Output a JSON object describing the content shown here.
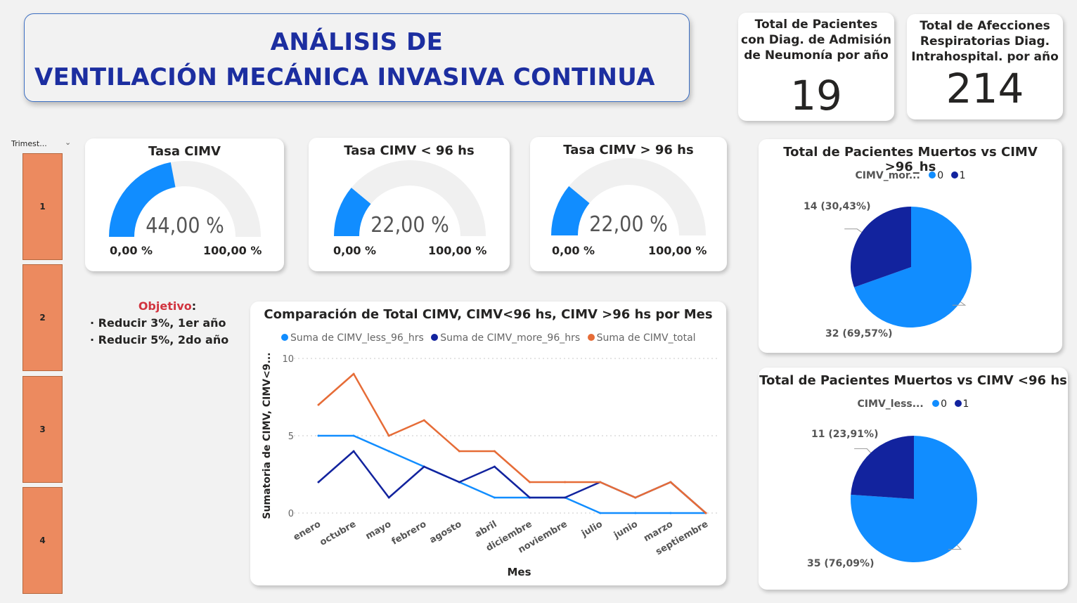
{
  "header": {
    "title_line1": "ANÁLISIS DE",
    "title_line2": "VENTILACIÓN MECÁNICA INVASIVA CONTINUA"
  },
  "kpis": [
    {
      "label": "Total de Pacientes con Diag. de Admisión de Neumonía por año",
      "value": "19"
    },
    {
      "label": "Total de Afecciones Respiratorias Diag. Intrahospital. por año",
      "value": "214"
    }
  ],
  "slicer": {
    "label": "Trimest...",
    "chevron_icon": "chevron-down-icon",
    "options": [
      "1",
      "2",
      "3",
      "4"
    ]
  },
  "gauges": [
    {
      "title": "Tasa CIMV",
      "value_label": "44,00 %",
      "value": 44,
      "min_label": "0,00 %",
      "max_label": "100,00 %"
    },
    {
      "title": "Tasa CIMV < 96 hs",
      "value_label": "22,00 %",
      "value": 22,
      "min_label": "0,00 %",
      "max_label": "100,00 %"
    },
    {
      "title": "Tasa CIMV > 96 hs",
      "value_label": "22,00 %",
      "value": 22,
      "min_label": "0,00 %",
      "max_label": "100,00 %"
    }
  ],
  "objective": {
    "title": "Objetivo",
    "items": [
      "· Reducir 3%, 1er año",
      "· Reducir 5%, 2do año"
    ]
  },
  "colors": {
    "accent_blue": "#118dff",
    "dark_blue": "#12239e",
    "orange": "#e66c37",
    "slicer_orange": "#ec8a5f",
    "title_blue": "#1c2ea0",
    "objective_red": "#d1343f"
  },
  "chart_data": [
    {
      "type": "line",
      "title": "Comparación de Total CIMV, CIMV<96 hs, CIMV >96 hs por Mes",
      "xlabel": "Mes",
      "ylabel": "Sumatoria de CIMV, CIMV<9...",
      "ylim": [
        0,
        10
      ],
      "yticks": [
        "0",
        "5",
        "10"
      ],
      "categories": [
        "enero",
        "octubre",
        "mayo",
        "febrero",
        "agosto",
        "abril",
        "diciembre",
        "noviembre",
        "julio",
        "junio",
        "marzo",
        "septiembre"
      ],
      "series": [
        {
          "name": "Suma de CIMV_less_96_hrs",
          "color": "#118dff",
          "values": [
            5,
            5,
            4,
            3,
            2,
            1,
            1,
            1,
            0,
            0,
            0,
            0
          ]
        },
        {
          "name": "Suma de CIMV_more_96_hrs",
          "color": "#12239e",
          "values": [
            2,
            4,
            1,
            3,
            2,
            3,
            1,
            1,
            2,
            1,
            2,
            0
          ]
        },
        {
          "name": "Suma de CIMV_total",
          "color": "#e66c37",
          "values": [
            7,
            9,
            5,
            6,
            4,
            4,
            2,
            2,
            2,
            1,
            2,
            0
          ]
        }
      ],
      "grid": true,
      "legend": "top"
    },
    {
      "type": "pie",
      "title": "Total de Pacientes Muertos vs CIMV >96_hs",
      "legend_title": "CIMV_mor...",
      "legend": "top",
      "slices": [
        {
          "name": "0",
          "value": 32,
          "label": "32 (69,57%)",
          "color": "#118dff"
        },
        {
          "name": "1",
          "value": 14,
          "label": "14 (30,43%)",
          "color": "#12239e"
        }
      ]
    },
    {
      "type": "pie",
      "title": "Total de Pacientes Muertos vs CIMV <96 hs",
      "legend_title": "CIMV_less...",
      "legend": "top",
      "slices": [
        {
          "name": "0",
          "value": 35,
          "label": "35 (76,09%)",
          "color": "#118dff"
        },
        {
          "name": "1",
          "value": 11,
          "label": "11 (23,91%)",
          "color": "#12239e"
        }
      ]
    }
  ]
}
